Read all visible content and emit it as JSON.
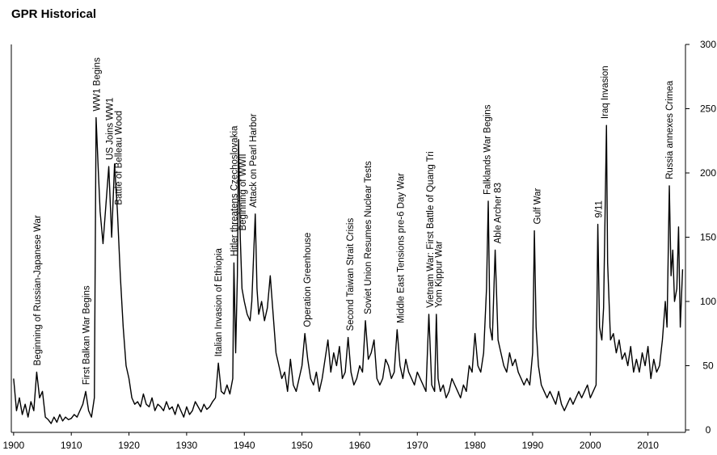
{
  "chart_data": {
    "type": "line",
    "title": "GPR Historical",
    "color": "#000000",
    "xlim": [
      1899.6,
      2016.5
    ],
    "xticks": [
      1900,
      1910,
      1920,
      1930,
      1940,
      1950,
      1960,
      1970,
      1980,
      1990,
      2000,
      2010
    ],
    "ylim": [
      0,
      300
    ],
    "yticks": [
      0,
      50,
      100,
      150,
      200,
      250,
      300
    ],
    "x": [
      1900,
      1900.5,
      1901,
      1901.5,
      1902,
      1902.5,
      1903,
      1903.5,
      1904,
      1904.5,
      1905,
      1905.5,
      1906,
      1906.5,
      1907,
      1907.5,
      1908,
      1908.5,
      1909,
      1909.5,
      1910,
      1910.5,
      1911,
      1911.5,
      1912,
      1912.5,
      1913,
      1913.5,
      1914,
      1914.3,
      1914.7,
      1915,
      1915.5,
      1916,
      1916.5,
      1917,
      1917.5,
      1918,
      1918.5,
      1919,
      1919.5,
      1920,
      1920.5,
      1921,
      1921.5,
      1922,
      1922.5,
      1923,
      1923.5,
      1924,
      1924.5,
      1925,
      1925.5,
      1926,
      1926.5,
      1927,
      1927.5,
      1928,
      1928.5,
      1929,
      1929.5,
      1930,
      1930.5,
      1931,
      1931.5,
      1932,
      1932.5,
      1933,
      1933.5,
      1934,
      1934.5,
      1935,
      1935.5,
      1936,
      1936.5,
      1937,
      1937.5,
      1938,
      1938.2,
      1938.5,
      1938.8,
      1939,
      1939.3,
      1939.6,
      1940,
      1940.5,
      1941,
      1941.3,
      1941.9,
      1942.2,
      1942.5,
      1943,
      1943.5,
      1944,
      1944.5,
      1945,
      1945.5,
      1946,
      1946.5,
      1947,
      1947.5,
      1948,
      1948.5,
      1949,
      1949.5,
      1950,
      1950.5,
      1951,
      1951.5,
      1952,
      1952.5,
      1953,
      1953.5,
      1954,
      1954.5,
      1955,
      1955.5,
      1956,
      1956.5,
      1957,
      1957.5,
      1958,
      1958.5,
      1959,
      1959.5,
      1960,
      1960.5,
      1961,
      1961.5,
      1962,
      1962.5,
      1963,
      1963.5,
      1964,
      1964.5,
      1965,
      1965.5,
      1966,
      1966.5,
      1967,
      1967.5,
      1968,
      1968.5,
      1969,
      1969.5,
      1970,
      1970.5,
      1971,
      1971.5,
      1972,
      1972.5,
      1973,
      1973.3,
      1973.6,
      1974,
      1974.5,
      1975,
      1975.5,
      1976,
      1976.5,
      1977,
      1977.5,
      1978,
      1978.5,
      1979,
      1979.5,
      1980,
      1980.5,
      1981,
      1981.5,
      1982,
      1982.3,
      1982.6,
      1983,
      1983.5,
      1984,
      1984.5,
      1985,
      1985.5,
      1986,
      1986.5,
      1987,
      1987.5,
      1988,
      1988.5,
      1989,
      1989.5,
      1990,
      1990.3,
      1990.6,
      1991,
      1991.5,
      1992,
      1992.5,
      1993,
      1993.5,
      1994,
      1994.5,
      1995,
      1995.5,
      1996,
      1996.5,
      1997,
      1997.5,
      1998,
      1998.5,
      1999,
      1999.5,
      2000,
      2000.5,
      2001,
      2001.3,
      2001.6,
      2002,
      2002.3,
      2002.8,
      2003,
      2003.5,
      2004,
      2004.5,
      2005,
      2005.5,
      2006,
      2006.5,
      2007,
      2007.5,
      2008,
      2008.5,
      2009,
      2009.5,
      2010,
      2010.5,
      2011,
      2011.5,
      2012,
      2012.5,
      2013,
      2013.3,
      2013.7,
      2014,
      2014.3,
      2014.6,
      2015,
      2015.3,
      2015.6,
      2016
    ],
    "values": [
      40,
      15,
      25,
      12,
      20,
      10,
      22,
      15,
      45,
      25,
      30,
      10,
      8,
      5,
      10,
      6,
      12,
      7,
      10,
      8,
      9,
      12,
      10,
      15,
      20,
      30,
      15,
      10,
      25,
      243,
      200,
      170,
      145,
      175,
      205,
      150,
      207,
      170,
      120,
      80,
      50,
      40,
      25,
      20,
      22,
      18,
      28,
      20,
      18,
      25,
      15,
      20,
      18,
      15,
      22,
      16,
      18,
      12,
      20,
      15,
      10,
      18,
      12,
      15,
      22,
      18,
      14,
      20,
      16,
      18,
      22,
      25,
      52,
      30,
      28,
      35,
      28,
      40,
      130,
      60,
      120,
      226,
      150,
      110,
      100,
      90,
      85,
      100,
      168,
      110,
      90,
      100,
      85,
      95,
      120,
      90,
      60,
      50,
      40,
      45,
      30,
      55,
      35,
      30,
      40,
      50,
      75,
      55,
      40,
      35,
      45,
      30,
      40,
      55,
      70,
      45,
      60,
      50,
      65,
      40,
      45,
      72,
      45,
      35,
      40,
      50,
      45,
      85,
      55,
      60,
      70,
      40,
      35,
      40,
      55,
      50,
      40,
      45,
      78,
      50,
      40,
      55,
      45,
      40,
      35,
      45,
      40,
      35,
      30,
      90,
      35,
      30,
      90,
      40,
      30,
      35,
      25,
      30,
      40,
      35,
      30,
      25,
      35,
      30,
      50,
      45,
      75,
      50,
      45,
      60,
      110,
      178,
      80,
      70,
      140,
      70,
      60,
      50,
      45,
      60,
      50,
      55,
      45,
      40,
      35,
      40,
      35,
      60,
      155,
      80,
      50,
      35,
      30,
      25,
      30,
      25,
      20,
      30,
      20,
      15,
      20,
      25,
      20,
      25,
      30,
      25,
      30,
      35,
      25,
      30,
      35,
      160,
      80,
      70,
      95,
      237,
      130,
      70,
      75,
      60,
      70,
      55,
      60,
      50,
      65,
      45,
      55,
      45,
      60,
      50,
      65,
      40,
      55,
      45,
      50,
      70,
      100,
      80,
      190,
      120,
      140,
      100,
      110,
      158,
      80,
      125
    ],
    "annotations": [
      {
        "x": 1904.1,
        "label": "Beginning of Russian-Japanese War"
      },
      {
        "x": 1912.6,
        "label": "First Balkan War Begins"
      },
      {
        "x": 1914.4,
        "label": "WW1 Begins"
      },
      {
        "x": 1916.6,
        "label": "US Joins WW1"
      },
      {
        "x": 1918.2,
        "label": "Battle of Belleau Wood"
      },
      {
        "x": 1935.5,
        "label": "Italian Invasion of Ethiopia"
      },
      {
        "x": 1938.2,
        "label": "Hitler threatens Czechoslovakia"
      },
      {
        "x": 1939.7,
        "label": "Beginning of WWII"
      },
      {
        "x": 1941.5,
        "label": "Attack on Pearl Harbor"
      },
      {
        "x": 1950.9,
        "label": "Operation Greenhouse"
      },
      {
        "x": 1958.3,
        "label": "Second Taiwan Strait Crisis"
      },
      {
        "x": 1961.4,
        "label": "Soviet Union Resumes Nuclear Tests"
      },
      {
        "x": 1967.1,
        "label": "Middle East Tensions pre-6 Day War"
      },
      {
        "x": 1972.2,
        "label": "Vietnam War: First Battle of Quang Tri"
      },
      {
        "x": 1973.7,
        "label": "Yom Kippur War"
      },
      {
        "x": 1982.1,
        "label": "Falklands War Begins"
      },
      {
        "x": 1983.9,
        "label": "Able Archer 83"
      },
      {
        "x": 1990.8,
        "label": "Gulf War"
      },
      {
        "x": 2001.4,
        "label": "9/11"
      },
      {
        "x": 2002.5,
        "label": "Iraq Invasion"
      },
      {
        "x": 2013.7,
        "label": "Russia annexes Crimea"
      }
    ]
  }
}
